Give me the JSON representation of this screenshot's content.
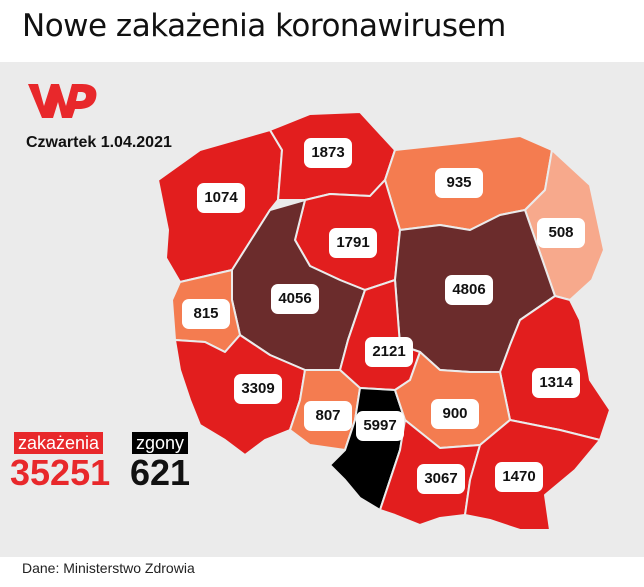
{
  "title": "Nowe zakażenia koronawirusem",
  "date": "Czwartek 1.04.2021",
  "logo": {
    "name": "wp-logo",
    "color": "#e8282b"
  },
  "colors": {
    "background": "#ebebeb",
    "red": "#e21e1e",
    "orange": "#f47c50",
    "light_orange": "#f7a98c",
    "dark_brown": "#6b2c2c",
    "black": "#000000"
  },
  "regions": [
    {
      "name": "pomorskie",
      "value": "1873"
    },
    {
      "name": "zachodniopomorskie",
      "value": "1074"
    },
    {
      "name": "warminsko-mazurskie",
      "value": "935"
    },
    {
      "name": "podlaskie",
      "value": "508"
    },
    {
      "name": "kujawsko-pomorskie",
      "value": "1791"
    },
    {
      "name": "wielkopolskie",
      "value": "4056"
    },
    {
      "name": "mazowieckie",
      "value": "4806"
    },
    {
      "name": "lubuskie",
      "value": "815"
    },
    {
      "name": "lodzkie",
      "value": "2121"
    },
    {
      "name": "lubelskie",
      "value": "1314"
    },
    {
      "name": "dolnoslaskie",
      "value": "3309"
    },
    {
      "name": "opolskie",
      "value": "807"
    },
    {
      "name": "slaskie",
      "value": "5997"
    },
    {
      "name": "swietokrzyskie",
      "value": "900"
    },
    {
      "name": "malopolskie",
      "value": "3067"
    },
    {
      "name": "podkarpackie",
      "value": "1470"
    }
  ],
  "stats": {
    "infections_label": "zakażenia",
    "infections_value": "35251",
    "deaths_label": "zgony",
    "deaths_value": "621"
  },
  "source": "Dane: Ministerstwo Zdrowia"
}
